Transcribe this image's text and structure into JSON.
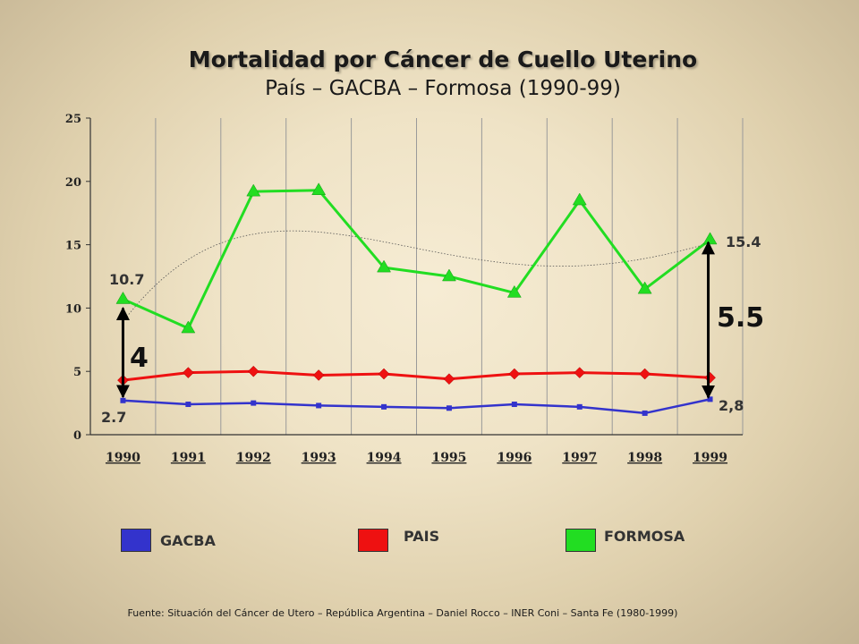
{
  "chart_data": {
    "type": "line",
    "title": "Mortalidad por Cáncer de Cuello Uterino",
    "subtitle": "País – GACBA – Formosa (1990-99)",
    "categories": [
      "1990",
      "1991",
      "1992",
      "1993",
      "1994",
      "1995",
      "1996",
      "1997",
      "1998",
      "1999"
    ],
    "ylim": [
      0,
      25
    ],
    "yticks": [
      "0",
      "5",
      "10",
      "15",
      "20",
      "25"
    ],
    "grid": "vertical",
    "series": [
      {
        "name": "GACBA",
        "color": "#3333cc",
        "marker": "square",
        "values": [
          2.7,
          2.4,
          2.5,
          2.3,
          2.2,
          2.1,
          2.4,
          2.2,
          1.7,
          2.8
        ]
      },
      {
        "name": "PAIS",
        "color": "#ee1111",
        "marker": "diamond",
        "values": [
          4.3,
          4.9,
          5.0,
          4.7,
          4.8,
          4.4,
          4.8,
          4.9,
          4.8,
          4.5
        ]
      },
      {
        "name": "FORMOSA",
        "color": "#22dd22",
        "marker": "triangle",
        "values": [
          10.7,
          8.4,
          19.2,
          19.3,
          13.2,
          12.5,
          11.2,
          18.5,
          11.5,
          15.4
        ]
      }
    ],
    "annotations": {
      "start_top": "10.7",
      "start_bottom": "2.7",
      "end_top": "15.4",
      "end_bottom": "2,8",
      "gap_start": "4",
      "gap_end": "5.5"
    }
  },
  "legend": [
    {
      "label": "GACBA",
      "color": "#3333cc"
    },
    {
      "label": "PAIS",
      "color": "#ee1111"
    },
    {
      "label": "FORMOSA",
      "color": "#22dd22"
    }
  ],
  "source": "Fuente: Situación  del Cáncer de Utero – República Argentina – Daniel Rocco – INER Coni – Santa Fe (1980-1999)"
}
